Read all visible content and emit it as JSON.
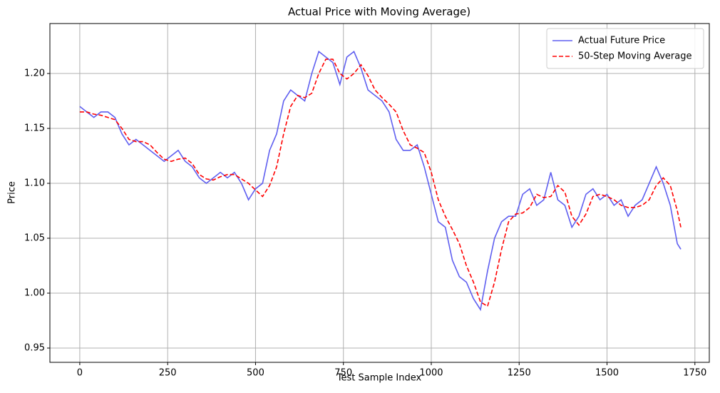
{
  "chart_data": {
    "type": "line",
    "title": "Actual Price with Moving Average)",
    "x_label": "Test Sample Index",
    "y_label": "Price",
    "x": [
      0,
      20,
      40,
      60,
      80,
      100,
      120,
      140,
      160,
      180,
      200,
      220,
      240,
      260,
      280,
      300,
      320,
      340,
      360,
      380,
      400,
      420,
      440,
      460,
      480,
      500,
      520,
      540,
      560,
      580,
      600,
      620,
      640,
      660,
      680,
      700,
      720,
      740,
      760,
      780,
      800,
      820,
      840,
      860,
      880,
      900,
      920,
      940,
      960,
      980,
      1000,
      1020,
      1040,
      1060,
      1080,
      1100,
      1120,
      1140,
      1160,
      1180,
      1200,
      1220,
      1240,
      1260,
      1280,
      1300,
      1320,
      1340,
      1360,
      1380,
      1400,
      1420,
      1440,
      1460,
      1480,
      1500,
      1520,
      1540,
      1560,
      1580,
      1600,
      1620,
      1640,
      1660,
      1680,
      1700,
      1710
    ],
    "series": [
      {
        "name": "Actual Future Price",
        "color": "#5f5ff0",
        "style": "solid",
        "values": [
          1.17,
          1.165,
          1.16,
          1.165,
          1.165,
          1.16,
          1.145,
          1.135,
          1.14,
          1.135,
          1.13,
          1.125,
          1.12,
          1.125,
          1.13,
          1.12,
          1.115,
          1.105,
          1.1,
          1.105,
          1.11,
          1.105,
          1.11,
          1.1,
          1.085,
          1.095,
          1.1,
          1.13,
          1.145,
          1.175,
          1.185,
          1.18,
          1.175,
          1.2,
          1.22,
          1.215,
          1.21,
          1.19,
          1.215,
          1.22,
          1.205,
          1.185,
          1.18,
          1.175,
          1.165,
          1.14,
          1.13,
          1.13,
          1.135,
          1.115,
          1.09,
          1.065,
          1.06,
          1.03,
          1.015,
          1.01,
          0.995,
          0.985,
          1.02,
          1.05,
          1.065,
          1.07,
          1.07,
          1.09,
          1.095,
          1.08,
          1.085,
          1.11,
          1.085,
          1.08,
          1.06,
          1.07,
          1.09,
          1.095,
          1.085,
          1.09,
          1.08,
          1.085,
          1.07,
          1.08,
          1.085,
          1.1,
          1.115,
          1.1,
          1.08,
          1.045,
          1.04
        ]
      },
      {
        "name": "50-Step Moving Average",
        "color": "#ff0000",
        "style": "dashed",
        "values": [
          1.165,
          1.165,
          1.163,
          1.162,
          1.16,
          1.158,
          1.15,
          1.14,
          1.138,
          1.138,
          1.135,
          1.128,
          1.122,
          1.12,
          1.122,
          1.123,
          1.118,
          1.108,
          1.104,
          1.103,
          1.106,
          1.108,
          1.108,
          1.104,
          1.1,
          1.094,
          1.088,
          1.098,
          1.115,
          1.145,
          1.17,
          1.18,
          1.178,
          1.182,
          1.2,
          1.213,
          1.213,
          1.2,
          1.195,
          1.2,
          1.208,
          1.198,
          1.185,
          1.178,
          1.172,
          1.165,
          1.148,
          1.135,
          1.132,
          1.128,
          1.11,
          1.085,
          1.07,
          1.058,
          1.045,
          1.025,
          1.01,
          0.992,
          0.988,
          1.01,
          1.04,
          1.065,
          1.072,
          1.073,
          1.078,
          1.09,
          1.087,
          1.088,
          1.098,
          1.092,
          1.07,
          1.062,
          1.072,
          1.088,
          1.09,
          1.088,
          1.085,
          1.08,
          1.078,
          1.078,
          1.08,
          1.085,
          1.098,
          1.105,
          1.098,
          1.075,
          1.06
        ]
      }
    ],
    "xlim": [
      -85,
      1791
    ],
    "ylim": [
      0.937,
      1.2455
    ],
    "xticks": [
      0,
      250,
      500,
      750,
      1000,
      1250,
      1500,
      1750
    ],
    "yticks": [
      0.95,
      {
        "value": 1.0,
        "label": "1.00"
      },
      1.05,
      {
        "value": 1.1,
        "label": "1.10"
      },
      1.15,
      {
        "value": 1.2,
        "label": "1.20"
      }
    ],
    "grid": true,
    "legend": "upper right"
  }
}
